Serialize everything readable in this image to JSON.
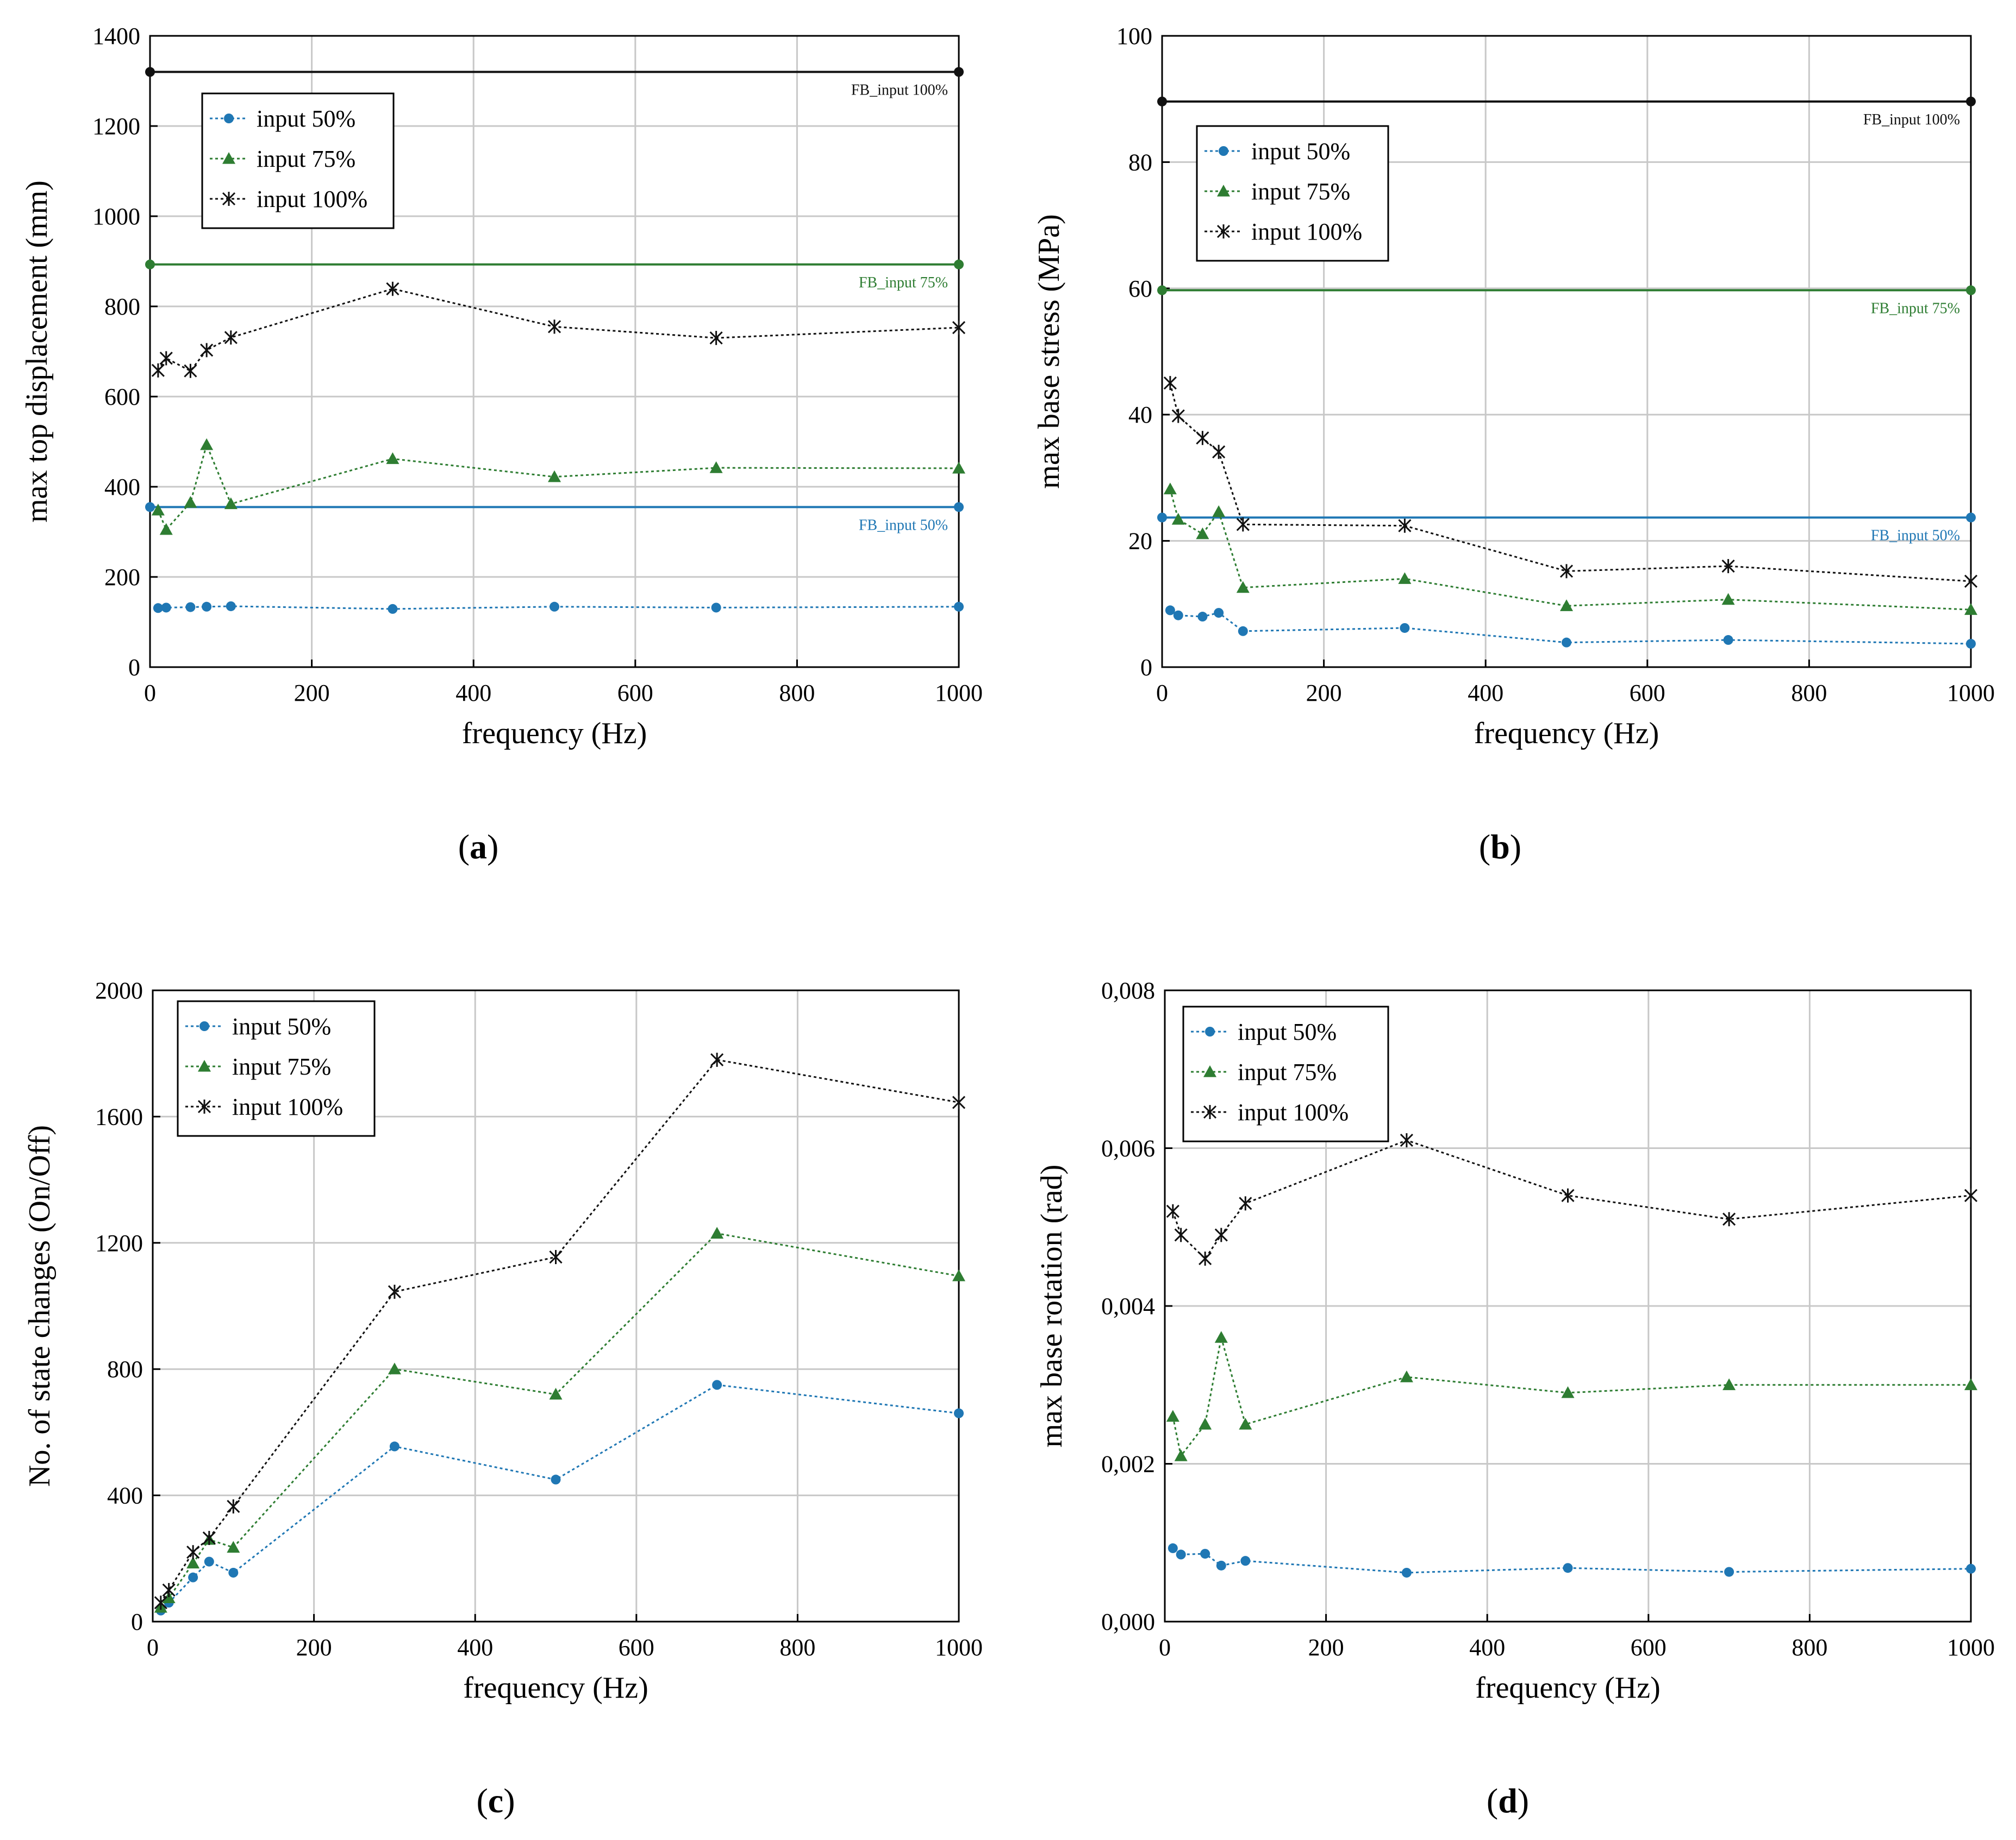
{
  "colors": {
    "s50": "#1f77b4",
    "s75": "#2e7d32",
    "s100": "#111111",
    "grid": "#c8c8c8"
  },
  "panel_labels": [
    "a",
    "b",
    "c",
    "d"
  ],
  "chart_data": [
    {
      "type": "line",
      "panel": "a",
      "xlabel": "frequency (Hz)",
      "ylabel": "max top displacement (mm)",
      "xlim": [
        0,
        1000
      ],
      "ylim": [
        0,
        1400
      ],
      "xticks": [
        0,
        200,
        400,
        600,
        800,
        1000
      ],
      "yticks": [
        0,
        200,
        400,
        600,
        800,
        1000,
        1200,
        1400
      ],
      "ytick_labels": [
        "0",
        "200",
        "400",
        "600",
        "800",
        "1000",
        "1200",
        "1400"
      ],
      "legend": "top-left",
      "series": [
        {
          "name": "input 50%",
          "key": "s50",
          "marker": "circle",
          "x": [
            10,
            20,
            50,
            70,
            100,
            300,
            500,
            700,
            1000
          ],
          "y": [
            131,
            132,
            133,
            134,
            135,
            129,
            134,
            132,
            134
          ]
        },
        {
          "name": "input 75%",
          "key": "s75",
          "marker": "triangle",
          "x": [
            10,
            20,
            50,
            70,
            100,
            300,
            500,
            700,
            1000
          ],
          "y": [
            348,
            305,
            365,
            493,
            362,
            462,
            422,
            442,
            441
          ]
        },
        {
          "name": "input 100%",
          "key": "s100",
          "marker": "star",
          "x": [
            10,
            20,
            50,
            70,
            100,
            300,
            500,
            700,
            1000
          ],
          "y": [
            658,
            685,
            657,
            703,
            731,
            839,
            755,
            730,
            753
          ]
        }
      ],
      "reference_lines": [
        {
          "label": "FB_input 100%",
          "key": "s100",
          "y": 1320
        },
        {
          "label": "FB_input 75%",
          "key": "s75",
          "y": 893
        },
        {
          "label": "FB_input 50%",
          "key": "s50",
          "y": 355
        }
      ]
    },
    {
      "type": "line",
      "panel": "b",
      "xlabel": "frequency (Hz)",
      "ylabel": "max base stress (MPa)",
      "xlim": [
        0,
        1000
      ],
      "ylim": [
        0,
        100
      ],
      "xticks": [
        0,
        200,
        400,
        600,
        800,
        1000
      ],
      "yticks": [
        0,
        20,
        40,
        60,
        80,
        100
      ],
      "ytick_labels": [
        "0",
        "20",
        "40",
        "60",
        "80",
        "100"
      ],
      "legend": "top-left",
      "series": [
        {
          "name": "input 50%",
          "key": "s50",
          "marker": "circle",
          "x": [
            10,
            20,
            50,
            70,
            100,
            300,
            500,
            700,
            1000
          ],
          "y": [
            9.0,
            8.2,
            8.0,
            8.6,
            5.7,
            6.2,
            3.9,
            4.3,
            3.7
          ]
        },
        {
          "name": "input 75%",
          "key": "s75",
          "marker": "triangle",
          "x": [
            10,
            20,
            50,
            70,
            100,
            300,
            500,
            700,
            1000
          ],
          "y": [
            28.2,
            23.4,
            21.1,
            24.6,
            12.6,
            14.0,
            9.7,
            10.7,
            9.1
          ]
        },
        {
          "name": "input 100%",
          "key": "s100",
          "marker": "star",
          "x": [
            10,
            20,
            50,
            70,
            100,
            300,
            500,
            700,
            1000
          ],
          "y": [
            45.0,
            39.8,
            36.3,
            34.1,
            22.6,
            22.4,
            15.2,
            16.0,
            13.6
          ]
        }
      ],
      "reference_lines": [
        {
          "label": "FB_input 100%",
          "key": "s100",
          "y": 89.6
        },
        {
          "label": "FB_input 75%",
          "key": "s75",
          "y": 59.7
        },
        {
          "label": "FB_input 50%",
          "key": "s50",
          "y": 23.7
        }
      ]
    },
    {
      "type": "line",
      "panel": "c",
      "xlabel": "frequency (Hz)",
      "ylabel": "No. of state changes (On/Off)",
      "xlim": [
        0,
        1000
      ],
      "ylim": [
        0,
        2000
      ],
      "xticks": [
        0,
        200,
        400,
        600,
        800,
        1000
      ],
      "yticks": [
        0,
        400,
        800,
        1200,
        1600,
        2000
      ],
      "ytick_labels": [
        "0",
        "400",
        "800",
        "1200",
        "1600",
        "2000"
      ],
      "legend": "top-left",
      "series": [
        {
          "name": "input 50%",
          "key": "s50",
          "marker": "circle",
          "x": [
            10,
            20,
            50,
            70,
            100,
            300,
            500,
            700,
            1000
          ],
          "y": [
            35,
            60,
            140,
            190,
            155,
            555,
            450,
            750,
            660
          ]
        },
        {
          "name": "input 75%",
          "key": "s75",
          "marker": "triangle",
          "x": [
            10,
            20,
            50,
            70,
            100,
            300,
            500,
            700,
            1000
          ],
          "y": [
            45,
            75,
            185,
            260,
            235,
            800,
            720,
            1230,
            1095
          ]
        },
        {
          "name": "input 100%",
          "key": "s100",
          "marker": "star",
          "x": [
            10,
            20,
            50,
            70,
            100,
            300,
            500,
            700,
            1000
          ],
          "y": [
            60,
            100,
            220,
            265,
            365,
            1045,
            1155,
            1780,
            1645
          ]
        }
      ],
      "reference_lines": []
    },
    {
      "type": "line",
      "panel": "d",
      "xlabel": "frequency (Hz)",
      "ylabel": "max base rotation (rad)",
      "xlim": [
        0,
        1000
      ],
      "ylim": [
        0,
        0.008
      ],
      "xticks": [
        0,
        200,
        400,
        600,
        800,
        1000
      ],
      "yticks": [
        0,
        0.002,
        0.004,
        0.006,
        0.008
      ],
      "ytick_labels": [
        "0,000",
        "0,002",
        "0,004",
        "0,006",
        "0,008"
      ],
      "legend": "top-left",
      "series": [
        {
          "name": "input 50%",
          "key": "s50",
          "marker": "circle",
          "x": [
            10,
            20,
            50,
            70,
            100,
            300,
            500,
            700,
            1000
          ],
          "y": [
            0.00093,
            0.00085,
            0.00086,
            0.00071,
            0.00077,
            0.00062,
            0.00068,
            0.00063,
            0.00067
          ]
        },
        {
          "name": "input 75%",
          "key": "s75",
          "marker": "triangle",
          "x": [
            10,
            20,
            50,
            70,
            100,
            300,
            500,
            700,
            1000
          ],
          "y": [
            0.0026,
            0.0021,
            0.0025,
            0.0036,
            0.0025,
            0.0031,
            0.0029,
            0.003,
            0.003
          ]
        },
        {
          "name": "input 100%",
          "key": "s100",
          "marker": "star",
          "x": [
            10,
            20,
            50,
            70,
            100,
            300,
            500,
            700,
            1000
          ],
          "y": [
            0.0052,
            0.0049,
            0.0046,
            0.0049,
            0.0053,
            0.0061,
            0.0054,
            0.0051,
            0.0054
          ]
        }
      ],
      "reference_lines": []
    }
  ]
}
